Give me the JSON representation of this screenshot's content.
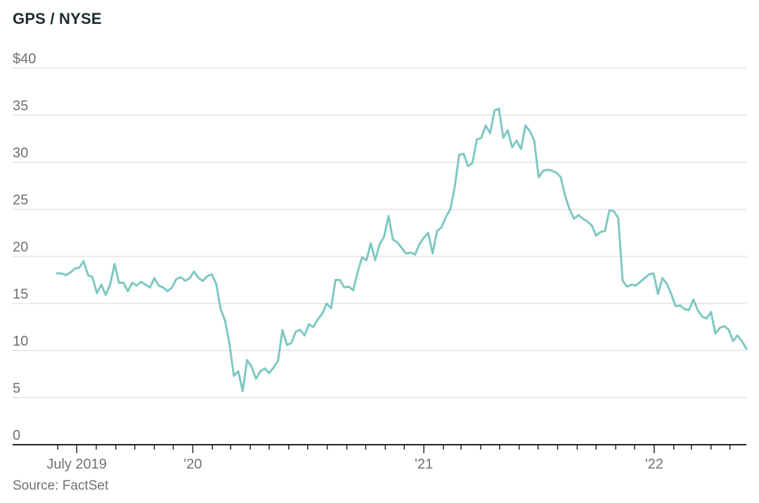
{
  "chart_data": {
    "type": "line",
    "title": "GPS / NYSE",
    "source": "Source: FactSet",
    "ylim": [
      0,
      40
    ],
    "y_ticks": [
      {
        "value": 40,
        "label": "$40"
      },
      {
        "value": 35,
        "label": "35"
      },
      {
        "value": 30,
        "label": "30"
      },
      {
        "value": 25,
        "label": "25"
      },
      {
        "value": 20,
        "label": "20"
      },
      {
        "value": 15,
        "label": "15"
      },
      {
        "value": 10,
        "label": "10"
      },
      {
        "value": 5,
        "label": "5"
      },
      {
        "value": 0,
        "label": "0"
      }
    ],
    "x_range": [
      "2019-05-24",
      "2022-05-27"
    ],
    "x_labels": [
      {
        "date": "2019-07-01",
        "label": "July 2019"
      },
      {
        "date": "2020-01-01",
        "label": "'20"
      },
      {
        "date": "2021-01-01",
        "label": "'21"
      },
      {
        "date": "2022-01-01",
        "label": "'22"
      }
    ],
    "grid": true,
    "line_color": "#7ec8c3",
    "series": [
      {
        "points": [
          [
            "2019-05-31",
            18.2
          ],
          [
            "2019-06-07",
            18.2
          ],
          [
            "2019-06-14",
            18.0
          ],
          [
            "2019-06-21",
            18.3
          ],
          [
            "2019-06-28",
            18.7
          ],
          [
            "2019-07-05",
            18.8
          ],
          [
            "2019-07-12",
            19.5
          ],
          [
            "2019-07-19",
            18.0
          ],
          [
            "2019-07-26",
            17.8
          ],
          [
            "2019-08-02",
            16.1
          ],
          [
            "2019-08-09",
            17.0
          ],
          [
            "2019-08-16",
            15.9
          ],
          [
            "2019-08-23",
            17.0
          ],
          [
            "2019-08-30",
            19.2
          ],
          [
            "2019-09-06",
            17.2
          ],
          [
            "2019-09-13",
            17.2
          ],
          [
            "2019-09-20",
            16.3
          ],
          [
            "2019-09-27",
            17.2
          ],
          [
            "2019-10-04",
            16.9
          ],
          [
            "2019-10-11",
            17.3
          ],
          [
            "2019-10-18",
            17.0
          ],
          [
            "2019-10-25",
            16.7
          ],
          [
            "2019-11-01",
            17.7
          ],
          [
            "2019-11-08",
            16.9
          ],
          [
            "2019-11-15",
            16.7
          ],
          [
            "2019-11-22",
            16.3
          ],
          [
            "2019-11-29",
            16.7
          ],
          [
            "2019-12-06",
            17.6
          ],
          [
            "2019-12-13",
            17.8
          ],
          [
            "2019-12-20",
            17.4
          ],
          [
            "2019-12-27",
            17.7
          ],
          [
            "2020-01-03",
            18.4
          ],
          [
            "2020-01-10",
            17.7
          ],
          [
            "2020-01-17",
            17.4
          ],
          [
            "2020-01-24",
            17.9
          ],
          [
            "2020-01-31",
            18.1
          ],
          [
            "2020-02-07",
            17.1
          ],
          [
            "2020-02-14",
            14.4
          ],
          [
            "2020-02-21",
            13.2
          ],
          [
            "2020-02-28",
            10.7
          ],
          [
            "2020-03-06",
            7.3
          ],
          [
            "2020-03-13",
            7.8
          ],
          [
            "2020-03-20",
            5.7
          ],
          [
            "2020-03-27",
            9.0
          ],
          [
            "2020-04-03",
            8.3
          ],
          [
            "2020-04-10",
            7.0
          ],
          [
            "2020-04-17",
            7.8
          ],
          [
            "2020-04-24",
            8.1
          ],
          [
            "2020-05-01",
            7.6
          ],
          [
            "2020-05-08",
            8.2
          ],
          [
            "2020-05-15",
            8.9
          ],
          [
            "2020-05-22",
            12.2
          ],
          [
            "2020-05-29",
            10.6
          ],
          [
            "2020-06-05",
            10.8
          ],
          [
            "2020-06-12",
            12.0
          ],
          [
            "2020-06-19",
            12.2
          ],
          [
            "2020-06-26",
            11.6
          ],
          [
            "2020-07-03",
            12.8
          ],
          [
            "2020-07-10",
            12.5
          ],
          [
            "2020-07-17",
            13.3
          ],
          [
            "2020-07-24",
            13.9
          ],
          [
            "2020-07-31",
            15.0
          ],
          [
            "2020-08-07",
            14.5
          ],
          [
            "2020-08-14",
            17.5
          ],
          [
            "2020-08-21",
            17.5
          ],
          [
            "2020-08-28",
            16.7
          ],
          [
            "2020-09-04",
            16.8
          ],
          [
            "2020-09-11",
            16.4
          ],
          [
            "2020-09-18",
            18.3
          ],
          [
            "2020-09-25",
            19.9
          ],
          [
            "2020-10-02",
            19.6
          ],
          [
            "2020-10-09",
            21.4
          ],
          [
            "2020-10-16",
            19.6
          ],
          [
            "2020-10-23",
            21.3
          ],
          [
            "2020-10-30",
            22.1
          ],
          [
            "2020-11-06",
            24.3
          ],
          [
            "2020-11-13",
            21.8
          ],
          [
            "2020-11-20",
            21.5
          ],
          [
            "2020-11-27",
            20.9
          ],
          [
            "2020-12-04",
            20.3
          ],
          [
            "2020-12-11",
            20.4
          ],
          [
            "2020-12-18",
            20.2
          ],
          [
            "2020-12-25",
            21.3
          ],
          [
            "2021-01-01",
            22.0
          ],
          [
            "2021-01-08",
            22.5
          ],
          [
            "2021-01-15",
            20.3
          ],
          [
            "2021-01-22",
            22.7
          ],
          [
            "2021-01-29",
            23.1
          ],
          [
            "2021-02-05",
            24.2
          ],
          [
            "2021-02-12",
            25.0
          ],
          [
            "2021-02-19",
            27.4
          ],
          [
            "2021-02-26",
            30.8
          ],
          [
            "2021-03-05",
            30.9
          ],
          [
            "2021-03-12",
            29.6
          ],
          [
            "2021-03-19",
            29.9
          ],
          [
            "2021-03-26",
            32.4
          ],
          [
            "2021-04-02",
            32.6
          ],
          [
            "2021-04-09",
            33.9
          ],
          [
            "2021-04-16",
            33.1
          ],
          [
            "2021-04-23",
            35.5
          ],
          [
            "2021-04-30",
            35.7
          ],
          [
            "2021-05-07",
            32.6
          ],
          [
            "2021-05-14",
            33.4
          ],
          [
            "2021-05-21",
            31.6
          ],
          [
            "2021-05-28",
            32.3
          ],
          [
            "2021-06-04",
            31.4
          ],
          [
            "2021-06-11",
            33.9
          ],
          [
            "2021-06-18",
            33.3
          ],
          [
            "2021-06-25",
            32.3
          ],
          [
            "2021-07-02",
            28.4
          ],
          [
            "2021-07-09",
            29.1
          ],
          [
            "2021-07-16",
            29.2
          ],
          [
            "2021-07-23",
            29.1
          ],
          [
            "2021-07-30",
            28.9
          ],
          [
            "2021-08-06",
            28.4
          ],
          [
            "2021-08-13",
            26.4
          ],
          [
            "2021-08-20",
            25.0
          ],
          [
            "2021-08-27",
            24.0
          ],
          [
            "2021-09-03",
            24.4
          ],
          [
            "2021-09-10",
            24.0
          ],
          [
            "2021-09-17",
            23.7
          ],
          [
            "2021-09-24",
            23.3
          ],
          [
            "2021-10-01",
            22.2
          ],
          [
            "2021-10-08",
            22.6
          ],
          [
            "2021-10-15",
            22.7
          ],
          [
            "2021-10-22",
            24.9
          ],
          [
            "2021-10-29",
            24.8
          ],
          [
            "2021-11-05",
            24.1
          ],
          [
            "2021-11-12",
            17.4
          ],
          [
            "2021-11-19",
            16.8
          ],
          [
            "2021-11-26",
            17.0
          ],
          [
            "2021-12-03",
            16.9
          ],
          [
            "2021-12-10",
            17.3
          ],
          [
            "2021-12-17",
            17.7
          ],
          [
            "2021-12-24",
            18.1
          ],
          [
            "2021-12-31",
            18.2
          ],
          [
            "2022-01-07",
            16.0
          ],
          [
            "2022-01-14",
            17.7
          ],
          [
            "2022-01-21",
            17.1
          ],
          [
            "2022-01-28",
            16.0
          ],
          [
            "2022-02-04",
            14.7
          ],
          [
            "2022-02-11",
            14.8
          ],
          [
            "2022-02-18",
            14.4
          ],
          [
            "2022-02-25",
            14.3
          ],
          [
            "2022-03-04",
            15.4
          ],
          [
            "2022-03-11",
            14.3
          ],
          [
            "2022-03-18",
            13.6
          ],
          [
            "2022-03-25",
            13.4
          ],
          [
            "2022-04-01",
            14.1
          ],
          [
            "2022-04-08",
            11.8
          ],
          [
            "2022-04-15",
            12.4
          ],
          [
            "2022-04-22",
            12.6
          ],
          [
            "2022-04-29",
            12.2
          ],
          [
            "2022-05-06",
            11.0
          ],
          [
            "2022-05-13",
            11.6
          ],
          [
            "2022-05-20",
            11.0
          ],
          [
            "2022-05-27",
            10.2
          ]
        ]
      }
    ]
  }
}
